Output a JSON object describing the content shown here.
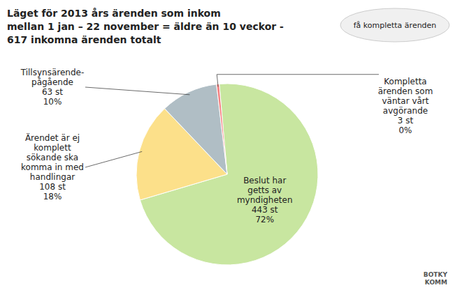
{
  "chart_data": {
    "type": "pie",
    "title": "Läget för 2013 års ärenden som inkom\nmellan 1 jan – 22 november = äldre än 10 veckor -\n617 inkomna ärenden totalt",
    "categories": [
      "Beslut har\ngetts av\nmyndigheten",
      "Ärendet är ej\nkomplett\nsökande ska\nkomma in med\nhandlingar",
      "Tillsynsärende-\npågående",
      "Kompletta\närenden som\nväntar vårt\navgörande"
    ],
    "values": [
      443,
      108,
      63,
      3
    ],
    "value_labels": [
      "443 st",
      "108 st",
      "63 st",
      "3 st"
    ],
    "share_labels": [
      "72%",
      "18%",
      "10%",
      "0%"
    ],
    "colors": [
      "#c8e6a0",
      "#fce08a",
      "#b0bec5",
      "#f48080"
    ],
    "annotations": [
      "få kompletta ärenden",
      "BOTKY\nKOMM"
    ]
  }
}
